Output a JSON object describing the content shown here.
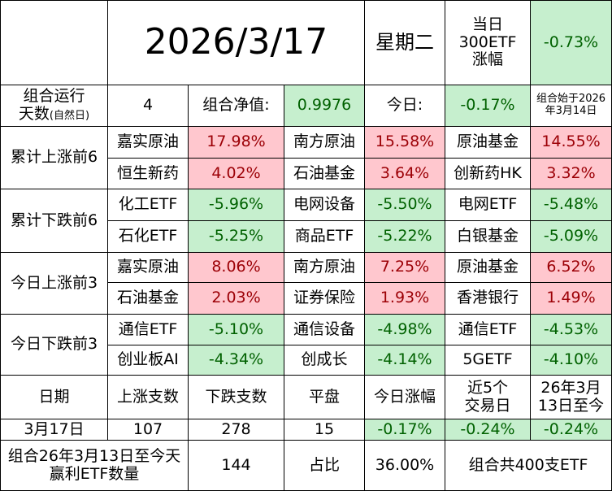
{
  "header": {
    "date": "2026/3/17",
    "weekday": "星期二",
    "index_change_label": "当日\n300ETF\n涨幅",
    "index_change": "-0.73%"
  },
  "summary": {
    "days_label": "组合运行\n天数",
    "days_note": "(自然日)",
    "days": "4",
    "nav_label": "组合净值:",
    "nav": "0.9976",
    "today_label": "今日:",
    "today": "-0.17%",
    "start_note": "组合始于2026\n年3月14日"
  },
  "groups": [
    {
      "label": "累计上涨前6",
      "tone": "up",
      "rows": [
        [
          {
            "name": "嘉实原油",
            "change": "17.98%"
          },
          {
            "name": "南方原油",
            "change": "15.58%"
          },
          {
            "name": "原油基金",
            "change": "14.55%"
          }
        ],
        [
          {
            "name": "恒生新药",
            "change": "4.02%"
          },
          {
            "name": "石油基金",
            "change": "3.64%"
          },
          {
            "name": "创新药HK",
            "change": "3.32%"
          }
        ]
      ]
    },
    {
      "label": "累计下跌前6",
      "tone": "down",
      "rows": [
        [
          {
            "name": "化工ETF",
            "change": "-5.96%"
          },
          {
            "name": "电网设备",
            "change": "-5.50%"
          },
          {
            "name": "电网ETF",
            "change": "-5.48%"
          }
        ],
        [
          {
            "name": "石化ETF",
            "change": "-5.25%"
          },
          {
            "name": "商品ETF",
            "change": "-5.22%"
          },
          {
            "name": "白银基金",
            "change": "-5.09%"
          }
        ]
      ]
    },
    {
      "label": "今日上涨前3",
      "tone": "up",
      "rows": [
        [
          {
            "name": "嘉实原油",
            "change": "8.06%"
          },
          {
            "name": "南方原油",
            "change": "7.25%"
          },
          {
            "name": "原油基金",
            "change": "6.52%"
          }
        ],
        [
          {
            "name": "石油基金",
            "change": "2.03%"
          },
          {
            "name": "证券保险",
            "change": "1.93%"
          },
          {
            "name": "香港银行",
            "change": "1.49%"
          }
        ]
      ]
    },
    {
      "label": "今日下跌前3",
      "tone": "down",
      "rows": [
        [
          {
            "name": "通信ETF",
            "change": "-5.10%"
          },
          {
            "name": "通信设备",
            "change": "-4.98%"
          },
          {
            "name": "通信ETF",
            "change": "-4.53%"
          }
        ],
        [
          {
            "name": "创业板AI",
            "change": "-4.34%"
          },
          {
            "name": "创成长",
            "change": "-4.14%"
          },
          {
            "name": "5GETF",
            "change": "-4.10%"
          }
        ]
      ]
    }
  ],
  "stats": {
    "headers": [
      "日期",
      "上涨支数",
      "下跌支数",
      "平盘",
      "今日涨幅",
      "近5个\n交易日",
      "26年3月\n13日至今"
    ],
    "row": [
      "3月17日",
      "107",
      "278",
      "15",
      "-0.17%",
      "-0.24%",
      "-0.24%"
    ]
  },
  "footer": {
    "label": "组合26年3月13日至今天\n赢利ETF数量",
    "count": "144",
    "ratio_label": "占比",
    "ratio": "36.00%",
    "total_note": "组合共400支ETF"
  }
}
